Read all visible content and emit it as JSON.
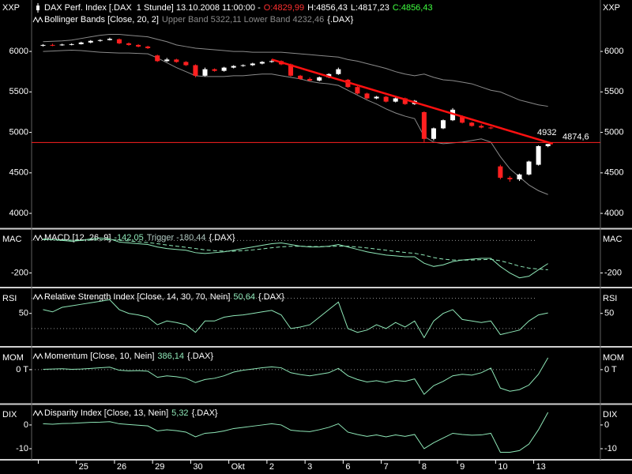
{
  "chart_data": [
    {
      "type": "candlestick",
      "axis_name": "XXP",
      "header": [
        {
          "text": "DAX Perf. Index [.DAX  1 Stunde] 13.10.2008 11:00:00 -",
          "color": "#ffffff"
        },
        {
          "text": "O:4829,99",
          "color": "#ff3030"
        },
        {
          "text": "H:4856,43",
          "color": "#ffffff"
        },
        {
          "text": "L:4817,23",
          "color": "#ffffff"
        },
        {
          "text": "C:4856,43",
          "color": "#40ff40"
        }
      ],
      "legend": [
        {
          "text": "Bollinger Bands [Close, 20, 2]",
          "color": "#ffffff"
        },
        {
          "text": "Upper Band 5322,11 Lower Band 4232,46",
          "color": "#8a8a8a"
        },
        {
          "text": "{.DAX}",
          "color": "#ffffff"
        }
      ],
      "up_color": "#ffffff",
      "down_color": "#ff2020",
      "open": [
        6070,
        6080,
        6075,
        6085,
        6090,
        6110,
        6130,
        6140,
        6150,
        6100,
        6080,
        6060,
        5950,
        5880,
        5900,
        5870,
        5830,
        5700,
        5780,
        5760,
        5800,
        5820,
        5830,
        5850,
        5870,
        5880,
        5840,
        5700,
        5660,
        5640,
        5680,
        5720,
        5650,
        5560,
        5480,
        5420,
        5440,
        5380,
        5420,
        5350,
        5250,
        4920,
        5050,
        5150,
        5200,
        5120,
        5080,
        5060,
        4580,
        4440,
        4420,
        4480,
        4600,
        4829.99
      ],
      "high": [
        6090,
        6095,
        6095,
        6100,
        6120,
        6140,
        6150,
        6170,
        6160,
        6110,
        6090,
        6070,
        5960,
        5920,
        5910,
        5880,
        5840,
        5800,
        5790,
        5810,
        5830,
        5840,
        5860,
        5880,
        5900,
        5890,
        5850,
        5710,
        5680,
        5690,
        5730,
        5800,
        5660,
        5570,
        5490,
        5450,
        5450,
        5430,
        5430,
        5400,
        5260,
        5060,
        5160,
        5300,
        5210,
        5130,
        5100,
        5070,
        4600,
        4460,
        4490,
        4650,
        4840,
        4856.43
      ],
      "low": [
        6060,
        6065,
        6070,
        6075,
        6085,
        6100,
        6120,
        6135,
        6090,
        6070,
        6050,
        6030,
        5870,
        5870,
        5860,
        5820,
        5680,
        5690,
        5750,
        5750,
        5790,
        5810,
        5820,
        5840,
        5860,
        5830,
        5690,
        5650,
        5630,
        5630,
        5670,
        5710,
        5550,
        5470,
        5410,
        5410,
        5370,
        5370,
        5340,
        5340,
        4880,
        4900,
        5040,
        5140,
        5110,
        5070,
        5050,
        5040,
        4420,
        4390,
        4400,
        4470,
        4590,
        4817.23
      ],
      "close": [
        6080,
        6075,
        6085,
        6090,
        6110,
        6130,
        6140,
        6155,
        6100,
        6080,
        6060,
        6040,
        5880,
        5900,
        5870,
        5830,
        5700,
        5780,
        5760,
        5800,
        5820,
        5830,
        5850,
        5870,
        5880,
        5840,
        5700,
        5660,
        5640,
        5680,
        5720,
        5780,
        5560,
        5480,
        5420,
        5440,
        5380,
        5420,
        5350,
        5390,
        4920,
        5050,
        5150,
        5280,
        5120,
        5080,
        5060,
        5050,
        4440,
        4420,
        4480,
        4640,
        4830,
        4856.43
      ],
      "bands": {
        "color": "#8a8a8a",
        "upper": [
          6120,
          6125,
          6130,
          6140,
          6160,
          6180,
          6200,
          6210,
          6210,
          6200,
          6190,
          6180,
          6150,
          6120,
          6080,
          6060,
          6040,
          6030,
          6020,
          6010,
          6000,
          6000,
          5990,
          5990,
          5990,
          5990,
          5980,
          5970,
          5960,
          5950,
          5940,
          5930,
          5900,
          5880,
          5850,
          5820,
          5790,
          5750,
          5720,
          5700,
          5720,
          5680,
          5650,
          5640,
          5620,
          5600,
          5560,
          5520,
          5500,
          5450,
          5400,
          5370,
          5340,
          5322.11
        ],
        "lower": [
          6000,
          6005,
          6010,
          6015,
          6010,
          6000,
          5990,
          5985,
          5980,
          5980,
          5975,
          5970,
          5920,
          5860,
          5800,
          5750,
          5700,
          5690,
          5690,
          5690,
          5700,
          5700,
          5710,
          5720,
          5720,
          5700,
          5680,
          5660,
          5630,
          5610,
          5600,
          5580,
          5520,
          5460,
          5400,
          5350,
          5290,
          5240,
          5200,
          5170,
          4950,
          4880,
          4860,
          4870,
          4880,
          4900,
          4920,
          4880,
          4700,
          4550,
          4450,
          4350,
          4280,
          4232.46
        ]
      },
      "hline": {
        "value": 4874.6,
        "label": "4874,6",
        "color": "#ff2020"
      },
      "trendline": {
        "x": [
          24,
          53.5
        ],
        "y": [
          5900,
          4860
        ],
        "label": 4932,
        "color": "#ff1010"
      },
      "xlim": [
        -1.2,
        58.5
      ],
      "ylim": [
        3825,
        6635
      ],
      "yticks": [
        4000,
        4500,
        5000,
        5500,
        6000
      ]
    },
    {
      "type": "line",
      "axis_name": "MAC",
      "legend": [
        {
          "text": "MACD [12, 26, 9]",
          "color": "#ffffff"
        },
        {
          "text": "-142,05",
          "color": "#8fe8b8"
        },
        {
          "text": "Trigger -180,44",
          "color": "#b0c8c0"
        },
        {
          "text": "{.DAX}",
          "color": "#ffffff"
        }
      ],
      "series": [
        {
          "color": "#8fe8b8",
          "dashed": false,
          "values": [
            10,
            5,
            0,
            -5,
            0,
            10,
            15,
            10,
            -10,
            -15,
            -20,
            -25,
            -40,
            -50,
            -55,
            -60,
            -75,
            -80,
            -75,
            -70,
            -60,
            -50,
            -40,
            -30,
            -20,
            -15,
            -25,
            -35,
            -40,
            -40,
            -35,
            -25,
            -40,
            -55,
            -70,
            -80,
            -90,
            -95,
            -100,
            -100,
            -140,
            -160,
            -150,
            -130,
            -120,
            -115,
            -110,
            -110,
            -160,
            -200,
            -230,
            -220,
            -180,
            -142.05
          ]
        },
        {
          "color": "#8fe8b8",
          "dashed": true,
          "values": [
            5,
            5,
            4,
            2,
            1,
            2,
            4,
            5,
            2,
            -3,
            -8,
            -13,
            -20,
            -28,
            -35,
            -42,
            -50,
            -58,
            -63,
            -66,
            -66,
            -63,
            -58,
            -52,
            -45,
            -39,
            -36,
            -36,
            -37,
            -38,
            -37,
            -35,
            -36,
            -40,
            -46,
            -53,
            -60,
            -67,
            -74,
            -79,
            -90,
            -105,
            -115,
            -120,
            -121,
            -120,
            -118,
            -116,
            -125,
            -140,
            -158,
            -170,
            -176,
            -180.44
          ]
        }
      ],
      "ref_lines": [
        0
      ],
      "xlim": [
        -1.2,
        58.5
      ],
      "ylim": [
        -280,
        65
      ],
      "yticks": [
        -200
      ]
    },
    {
      "type": "line",
      "axis_name": "RSI",
      "legend": [
        {
          "text": "Relative Strength Index [Close, 14, 30, 70, Nein]",
          "color": "#ffffff"
        },
        {
          "text": "50,64",
          "color": "#8fe8b8"
        },
        {
          "text": "{.DAX}",
          "color": "#ffffff"
        }
      ],
      "series": [
        {
          "color": "#8fe8b8",
          "dashed": false,
          "values": [
            55,
            52,
            58,
            60,
            62,
            64,
            66,
            68,
            55,
            50,
            48,
            45,
            35,
            40,
            38,
            35,
            25,
            40,
            40,
            45,
            47,
            48,
            50,
            52,
            54,
            48,
            30,
            32,
            35,
            45,
            55,
            65,
            30,
            25,
            28,
            35,
            30,
            38,
            32,
            40,
            18,
            40,
            50,
            55,
            42,
            40,
            38,
            40,
            22,
            25,
            28,
            40,
            48,
            50.64
          ]
        }
      ],
      "ref_lines": [
        30,
        70
      ],
      "xlim": [
        -1.2,
        58.5
      ],
      "ylim": [
        8,
        82
      ],
      "yticks": [
        50
      ]
    },
    {
      "type": "line",
      "axis_name": "MOM",
      "legend": [
        {
          "text": "Momentum [Close, 10, Nein]",
          "color": "#ffffff"
        },
        {
          "text": "386,14",
          "color": "#8fe8b8"
        },
        {
          "text": "{.DAX}",
          "color": "#ffffff"
        }
      ],
      "series": [
        {
          "color": "#8fe8b8",
          "dashed": false,
          "values": [
            10,
            20,
            30,
            10,
            20,
            40,
            60,
            80,
            -20,
            -40,
            -30,
            -50,
            -250,
            -200,
            -230,
            -280,
            -420,
            -320,
            -280,
            -200,
            -80,
            -20,
            20,
            60,
            90,
            60,
            -100,
            -160,
            -200,
            -150,
            -100,
            40,
            -200,
            -320,
            -400,
            -360,
            -420,
            -350,
            -380,
            -300,
            -800,
            -520,
            -380,
            -200,
            -150,
            -180,
            -100,
            50,
            -600,
            -700,
            -650,
            -500,
            -150,
            386.14
          ]
        }
      ],
      "ref_lines": [
        0
      ],
      "xlim": [
        -1.2,
        58.5
      ],
      "ylim": [
        -1080,
        690
      ],
      "yticks": [
        {
          "value": 0,
          "label": "0 T"
        }
      ]
    },
    {
      "type": "line",
      "axis_name": "DIX",
      "legend": [
        {
          "text": "Disparity Index [Close, 13, Nein]",
          "color": "#ffffff"
        },
        {
          "text": "5,32",
          "color": "#8fe8b8"
        },
        {
          "text": "{.DAX}",
          "color": "#ffffff"
        }
      ],
      "series": [
        {
          "color": "#8fe8b8",
          "dashed": false,
          "values": [
            0.5,
            0.3,
            0.6,
            0.7,
            0.9,
            1.1,
            1.2,
            1.4,
            0.5,
            0.2,
            -0.1,
            -0.4,
            -2.5,
            -2,
            -2.4,
            -3,
            -5,
            -3.5,
            -3.2,
            -2.5,
            -1.5,
            -1,
            -0.5,
            0,
            0.5,
            0,
            -2.2,
            -2.6,
            -2.8,
            -2,
            -1,
            0.5,
            -3,
            -4,
            -4.8,
            -4.2,
            -5,
            -4.2,
            -4.8,
            -4,
            -10,
            -7.5,
            -5.5,
            -3.5,
            -4,
            -4.3,
            -4.2,
            -3.5,
            -11.5,
            -11.5,
            -10.8,
            -8,
            -2,
            5.32
          ]
        }
      ],
      "xlim": [
        -1.2,
        58.5
      ],
      "ylim": [
        -14,
        8.3
      ],
      "yticks": [
        0,
        -10
      ],
      "xticks": [
        {
          "value": -0.5,
          "label": null
        },
        {
          "value": 3.5,
          "label": "25"
        },
        {
          "value": 7.5,
          "label": "26"
        },
        {
          "value": 11.5,
          "label": "29"
        },
        {
          "value": 15.5,
          "label": "30"
        },
        {
          "value": 19.5,
          "label": "Okt"
        },
        {
          "value": 23.5,
          "label": "2"
        },
        {
          "value": 27.5,
          "label": "3"
        },
        {
          "value": 31.5,
          "label": "6"
        },
        {
          "value": 35.5,
          "label": "7"
        },
        {
          "value": 39.5,
          "label": "8"
        },
        {
          "value": 43.5,
          "label": "9"
        },
        {
          "value": 47.5,
          "label": "10"
        },
        {
          "value": 51.5,
          "label": "13"
        }
      ]
    }
  ]
}
